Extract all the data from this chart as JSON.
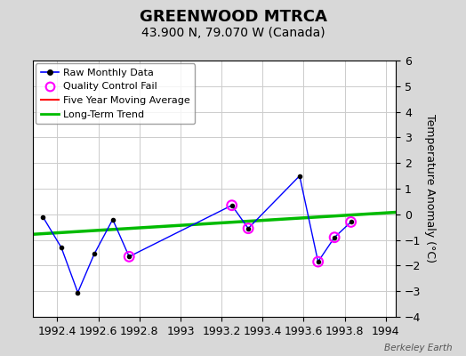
{
  "title": "GREENWOOD MTRCA",
  "subtitle": "43.900 N, 79.070 W (Canada)",
  "ylabel": "Temperature Anomaly (°C)",
  "xlim": [
    1992.28,
    1994.05
  ],
  "ylim": [
    -4,
    6
  ],
  "yticks": [
    -4,
    -3,
    -2,
    -1,
    0,
    1,
    2,
    3,
    4,
    5,
    6
  ],
  "xticks": [
    1992.4,
    1992.6,
    1992.8,
    1993.0,
    1993.2,
    1993.4,
    1993.6,
    1993.8,
    1994.0
  ],
  "xtick_labels": [
    "1992.4",
    "1992.6",
    "1992.8",
    "1993",
    "1993.2",
    "1993.4",
    "1993.6",
    "1993.8",
    "1994"
  ],
  "raw_x": [
    1992.33,
    1992.42,
    1992.5,
    1992.58,
    1992.67,
    1992.75,
    1993.25,
    1993.33,
    1993.58,
    1993.67,
    1993.75,
    1993.83
  ],
  "raw_y": [
    -0.1,
    -1.3,
    -3.05,
    -1.55,
    -0.2,
    -1.65,
    0.35,
    -0.55,
    1.5,
    -1.85,
    -0.9,
    -0.3
  ],
  "qc_fail_x": [
    1992.75,
    1993.25,
    1993.33,
    1993.67,
    1993.75,
    1993.83
  ],
  "qc_fail_y": [
    -1.65,
    0.35,
    -0.55,
    -1.85,
    -0.9,
    -0.3
  ],
  "trend_x": [
    1992.28,
    1994.05
  ],
  "trend_y": [
    -0.78,
    0.08
  ],
  "bg_color": "#d8d8d8",
  "plot_bg_color": "#ffffff",
  "raw_line_color": "#0000ff",
  "raw_marker_color": "#000000",
  "qc_marker_color": "#ff00ff",
  "five_yr_color": "#ff0000",
  "trend_color": "#00bb00",
  "watermark": "Berkeley Earth",
  "title_fontsize": 13,
  "subtitle_fontsize": 10,
  "tick_fontsize": 9,
  "ylabel_fontsize": 9
}
